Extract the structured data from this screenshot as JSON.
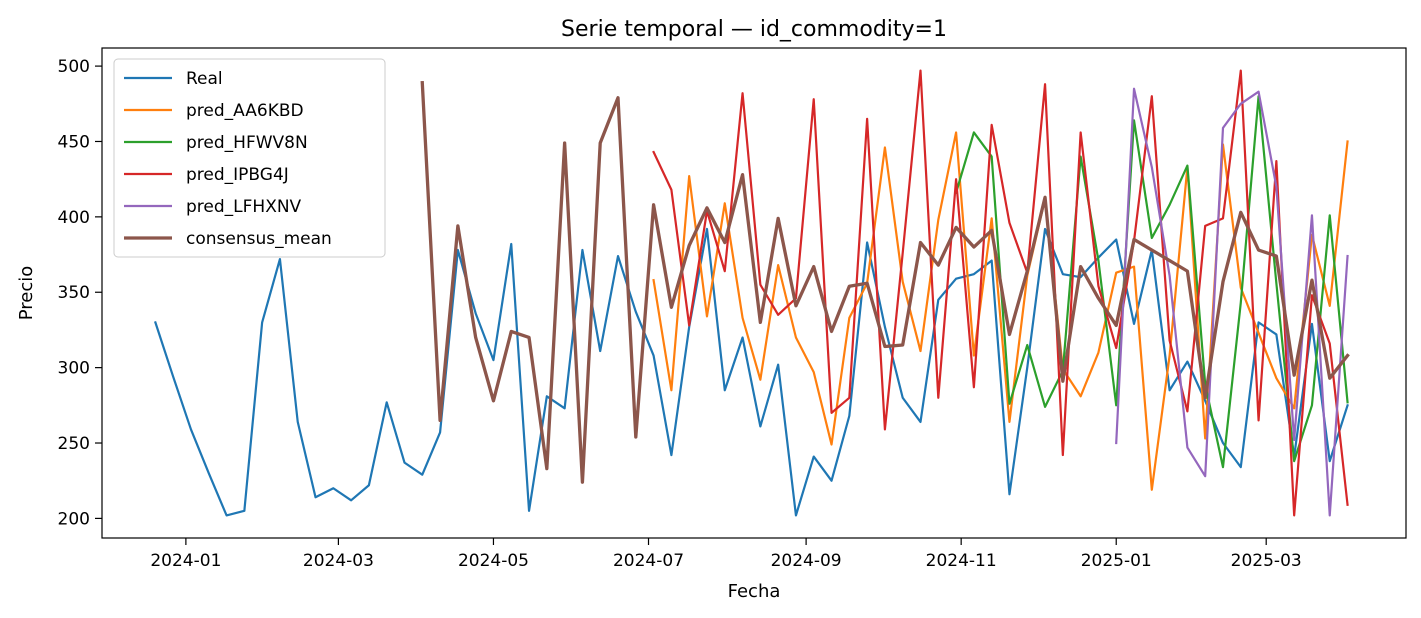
{
  "chart_data": {
    "type": "line",
    "title": "Serie temporal — id_commodity=1",
    "xlabel": "Fecha",
    "ylabel": "Precio",
    "x_range": [
      "2023-11-29",
      "2025-04-25"
    ],
    "ylim": [
      187,
      512
    ],
    "x_ticks": [
      "2024-01-01",
      "2024-03-01",
      "2024-05-01",
      "2024-07-01",
      "2024-09-01",
      "2024-11-01",
      "2025-01-01",
      "2025-03-01"
    ],
    "x_tick_labels": [
      "2024-01",
      "2024-03",
      "2024-05",
      "2024-07",
      "2024-09",
      "2024-11",
      "2025-01",
      "2025-03"
    ],
    "y_ticks": [
      200,
      250,
      300,
      350,
      400,
      450,
      500
    ],
    "y_tick_labels": [
      "200",
      "250",
      "300",
      "350",
      "400",
      "450",
      "500"
    ],
    "grid": false,
    "legend_position": "top-left",
    "series": [
      {
        "name": "Real",
        "color": "#1f77b4",
        "width": 2.2,
        "x": [
          "2023-12-20",
          "2023-12-27",
          "2024-01-03",
          "2024-01-10",
          "2024-01-17",
          "2024-01-24",
          "2024-01-31",
          "2024-02-07",
          "2024-02-14",
          "2024-02-21",
          "2024-02-28",
          "2024-03-06",
          "2024-03-13",
          "2024-03-20",
          "2024-03-27",
          "2024-04-03",
          "2024-04-10",
          "2024-04-17",
          "2024-04-24",
          "2024-05-01",
          "2024-05-08",
          "2024-05-15",
          "2024-05-22",
          "2024-05-29",
          "2024-06-05",
          "2024-06-12",
          "2024-06-19",
          "2024-06-26",
          "2024-07-03",
          "2024-07-10",
          "2024-07-17",
          "2024-07-24",
          "2024-07-31",
          "2024-08-07",
          "2024-08-14",
          "2024-08-21",
          "2024-08-28",
          "2024-09-04",
          "2024-09-11",
          "2024-09-18",
          "2024-09-25",
          "2024-10-02",
          "2024-10-09",
          "2024-10-16",
          "2024-10-23",
          "2024-10-30",
          "2024-11-06",
          "2024-11-13",
          "2024-11-20",
          "2024-11-27",
          "2024-12-04",
          "2024-12-11",
          "2024-12-18",
          "2024-12-25",
          "2025-01-01",
          "2025-01-08",
          "2025-01-15",
          "2025-01-22",
          "2025-01-29",
          "2025-02-05",
          "2025-02-12",
          "2025-02-19",
          "2025-02-26",
          "2025-03-05",
          "2025-03-12",
          "2025-03-19",
          "2025-03-26",
          "2025-04-02"
        ],
        "y": [
          330,
          294,
          259,
          230,
          202,
          205,
          330,
          372,
          264,
          214,
          220,
          212,
          222,
          277,
          237,
          229,
          257,
          378,
          336,
          305,
          382,
          205,
          281,
          273,
          378,
          311,
          374,
          337,
          308,
          242,
          327,
          392,
          285,
          320,
          261,
          302,
          202,
          241,
          225,
          268,
          383,
          327,
          280,
          264,
          345,
          359,
          362,
          371,
          216,
          300,
          392,
          362,
          360,
          373,
          385,
          329,
          378,
          285,
          304,
          278,
          250,
          234,
          330,
          322,
          241,
          329,
          238,
          275
        ]
      },
      {
        "name": "pred_AA6KBD",
        "color": "#ff7f0e",
        "width": 2.2,
        "x": [
          "2024-07-03",
          "2024-07-10",
          "2024-07-17",
          "2024-07-24",
          "2024-07-31",
          "2024-08-07",
          "2024-08-14",
          "2024-08-21",
          "2024-08-28",
          "2024-09-04",
          "2024-09-11",
          "2024-09-18",
          "2024-09-25",
          "2024-10-02",
          "2024-10-09",
          "2024-10-16",
          "2024-10-23",
          "2024-10-30",
          "2024-11-06",
          "2024-11-13",
          "2024-11-20",
          "2024-11-27",
          "2024-12-04",
          "2024-12-11",
          "2024-12-18",
          "2024-12-25",
          "2025-01-01",
          "2025-01-08",
          "2025-01-15",
          "2025-01-22",
          "2025-01-29",
          "2025-02-05",
          "2025-02-12",
          "2025-02-19",
          "2025-02-26",
          "2025-03-05",
          "2025-03-12",
          "2025-03-19",
          "2025-03-26",
          "2025-04-02"
        ],
        "y": [
          358,
          285,
          427,
          334,
          409,
          333,
          292,
          368,
          320,
          297,
          249,
          333,
          356,
          446,
          357,
          311,
          398,
          456,
          308,
          399,
          264,
          361,
          412,
          299,
          281,
          310,
          363,
          367,
          219,
          308,
          433,
          253,
          448,
          353,
          323,
          293,
          273,
          388,
          341,
          450
        ]
      },
      {
        "name": "pred_HFWV8N",
        "color": "#2ca02c",
        "width": 2.2,
        "x": [
          "2024-10-30",
          "2024-11-06",
          "2024-11-13",
          "2024-11-20",
          "2024-11-27",
          "2024-12-04",
          "2024-12-11",
          "2024-12-18",
          "2024-12-25",
          "2025-01-01",
          "2025-01-08",
          "2025-01-15",
          "2025-01-22",
          "2025-01-29",
          "2025-02-05",
          "2025-02-12",
          "2025-02-19",
          "2025-02-26",
          "2025-03-05",
          "2025-03-12",
          "2025-03-19",
          "2025-03-26",
          "2025-04-02"
        ],
        "y": [
          416,
          456,
          440,
          276,
          315,
          274,
          298,
          440,
          371,
          275,
          464,
          386,
          408,
          434,
          289,
          234,
          343,
          480,
          356,
          238,
          275,
          401,
          277
        ]
      },
      {
        "name": "pred_IPBG4J",
        "color": "#d62728",
        "width": 2.2,
        "x": [
          "2024-07-03",
          "2024-07-10",
          "2024-07-17",
          "2024-07-24",
          "2024-07-31",
          "2024-08-07",
          "2024-08-14",
          "2024-08-21",
          "2024-08-28",
          "2024-09-04",
          "2024-09-11",
          "2024-09-18",
          "2024-09-25",
          "2024-10-02",
          "2024-10-09",
          "2024-10-16",
          "2024-10-23",
          "2024-10-30",
          "2024-11-06",
          "2024-11-13",
          "2024-11-20",
          "2024-11-27",
          "2024-12-04",
          "2024-12-11",
          "2024-12-18",
          "2024-12-25",
          "2025-01-01",
          "2025-01-08",
          "2025-01-15",
          "2025-01-22",
          "2025-01-29",
          "2025-02-05",
          "2025-02-12",
          "2025-02-19",
          "2025-02-26",
          "2025-03-05",
          "2025-03-12",
          "2025-03-19",
          "2025-03-26",
          "2025-04-02"
        ],
        "y": [
          443,
          418,
          328,
          404,
          364,
          482,
          355,
          335,
          346,
          478,
          270,
          280,
          465,
          259,
          376,
          497,
          280,
          425,
          287,
          461,
          396,
          363,
          488,
          242,
          456,
          354,
          313,
          384,
          480,
          318,
          271,
          394,
          399,
          497,
          265,
          437,
          202,
          348,
          316,
          209
        ]
      },
      {
        "name": "pred_LFHXNV",
        "color": "#9467bd",
        "width": 2.2,
        "x": [
          "2025-01-01",
          "2025-01-08",
          "2025-01-15",
          "2025-01-22",
          "2025-01-29",
          "2025-02-05",
          "2025-02-12",
          "2025-02-19",
          "2025-02-26",
          "2025-03-05",
          "2025-03-12",
          "2025-03-19",
          "2025-03-26",
          "2025-04-02"
        ],
        "y": [
          250,
          485,
          433,
          361,
          247,
          228,
          459,
          475,
          483,
          420,
          252,
          401,
          202,
          374
        ]
      },
      {
        "name": "consensus_mean",
        "color": "#8c564b",
        "width": 3.3,
        "x": [
          "2024-04-03",
          "2024-04-10",
          "2024-04-17",
          "2024-04-24",
          "2024-05-01",
          "2024-05-08",
          "2024-05-15",
          "2024-05-22",
          "2024-05-29",
          "2024-06-05",
          "2024-06-12",
          "2024-06-19",
          "2024-06-26",
          "2024-07-03",
          "2024-07-10",
          "2024-07-17",
          "2024-07-24",
          "2024-07-31",
          "2024-08-07",
          "2024-08-14",
          "2024-08-21",
          "2024-08-28",
          "2024-09-04",
          "2024-09-11",
          "2024-09-18",
          "2024-09-25",
          "2024-10-02",
          "2024-10-09",
          "2024-10-16",
          "2024-10-23",
          "2024-10-30",
          "2024-11-06",
          "2024-11-13",
          "2024-11-20",
          "2024-11-27",
          "2024-12-04",
          "2024-12-11",
          "2024-12-18",
          "2024-12-25",
          "2025-01-01",
          "2025-01-08",
          "2025-01-15",
          "2025-01-22",
          "2025-01-29",
          "2025-02-05",
          "2025-02-12",
          "2025-02-19",
          "2025-02-26",
          "2025-03-05",
          "2025-03-12",
          "2025-03-19",
          "2025-03-26",
          "2025-04-02"
        ],
        "y": [
          489,
          265,
          394,
          320,
          278,
          324,
          320,
          233,
          449,
          224,
          449,
          479,
          254,
          408,
          340,
          381,
          406,
          383,
          428,
          330,
          399,
          341,
          367,
          324,
          354,
          356,
          314,
          315,
          383,
          368,
          393,
          380,
          391,
          322,
          364,
          413,
          291,
          367,
          346,
          328,
          385,
          378,
          371,
          364,
          280,
          357,
          403,
          378,
          374,
          295,
          358,
          293,
          308
        ]
      }
    ]
  }
}
